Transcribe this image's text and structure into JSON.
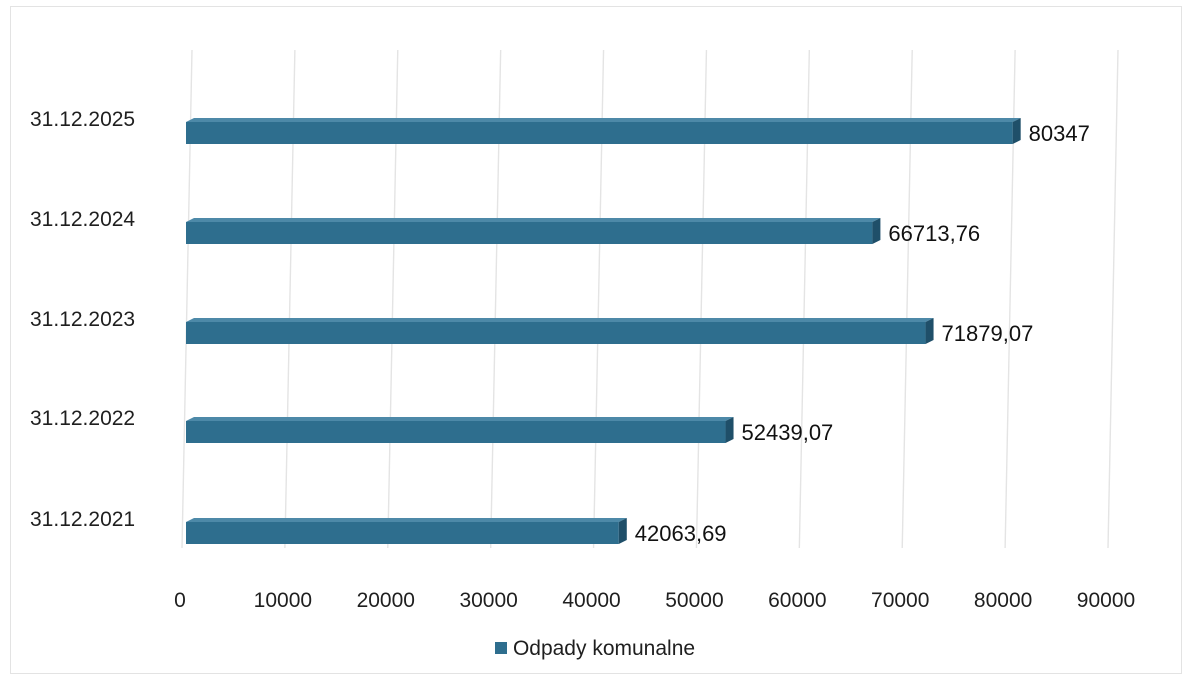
{
  "chart_data": {
    "type": "bar",
    "orientation": "horizontal",
    "categories": [
      "31.12.2021",
      "31.12.2022",
      "31.12.2023",
      "31.12.2024",
      "31.12.2025"
    ],
    "series": [
      {
        "name": "Odpady komunalne",
        "values": [
          42063.69,
          52439.07,
          71879.07,
          66713.76,
          80347
        ],
        "labels": [
          "42063,69",
          "52439,07",
          "71879,07",
          "66713,76",
          "80347"
        ],
        "color": "#2e6e8e"
      }
    ],
    "x_ticks": [
      "0",
      "10000",
      "20000",
      "30000",
      "40000",
      "50000",
      "60000",
      "70000",
      "80000",
      "90000"
    ],
    "xlim": [
      0,
      90000
    ],
    "grid": true,
    "legend_position": "bottom",
    "title": "",
    "xlabel": "",
    "ylabel": ""
  }
}
